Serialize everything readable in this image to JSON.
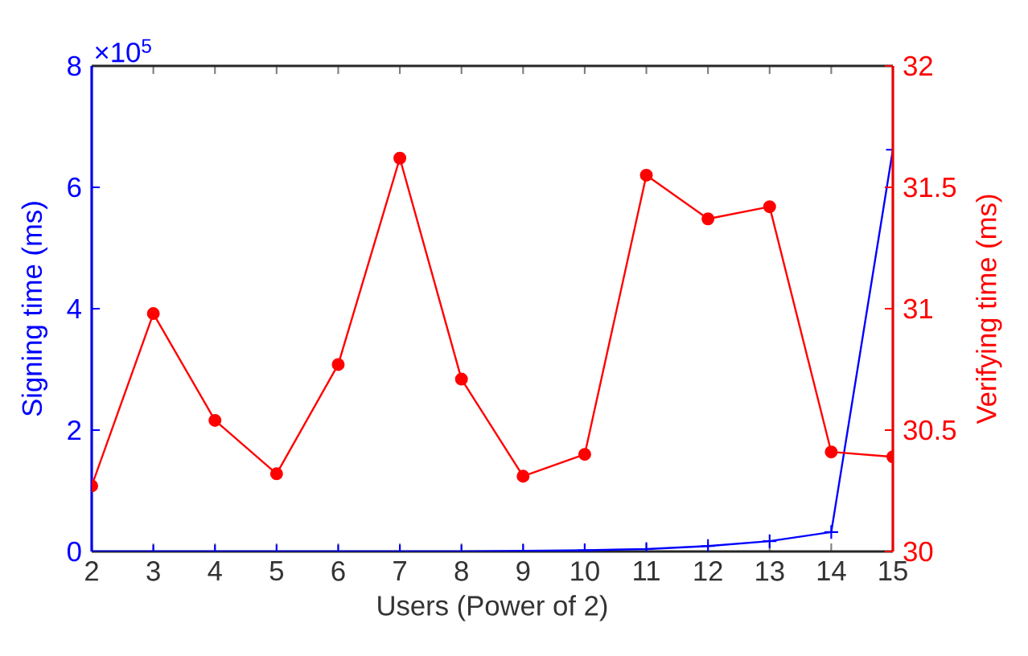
{
  "chart_data": {
    "type": "line",
    "xlabel": "Users (Power of 2)",
    "ylabel": "Signing time (ms)",
    "y2label": "Verifying time (ms)",
    "x": [
      2,
      3,
      4,
      5,
      6,
      7,
      8,
      9,
      10,
      11,
      12,
      13,
      14,
      15
    ],
    "xlim": [
      2,
      15
    ],
    "xticks": [
      2,
      3,
      4,
      5,
      6,
      7,
      8,
      9,
      10,
      11,
      12,
      13,
      14,
      15
    ],
    "ylim": [
      0,
      8
    ],
    "yticks": [
      0,
      2,
      4,
      6,
      8
    ],
    "y2lim": [
      30,
      32
    ],
    "y2ticks": [
      30,
      30.5,
      31,
      31.5,
      32
    ],
    "annotations": [
      "×10$^{5}$"
    ],
    "grid": false,
    "series": [
      {
        "color": "#0000ff",
        "marker": "cross",
        "values": [
          0,
          0,
          0,
          0,
          0,
          0,
          0,
          0.01,
          0.02,
          0.04,
          0.09,
          0.17,
          0.32,
          6.62
        ]
      },
      {
        "color": "#ff0000",
        "marker": "circle",
        "axis": "y2",
        "values": [
          30.27,
          30.98,
          30.54,
          30.32,
          30.77,
          31.62,
          30.71,
          30.31,
          30.4,
          31.55,
          31.37,
          31.42,
          30.41,
          30.39
        ]
      }
    ]
  }
}
